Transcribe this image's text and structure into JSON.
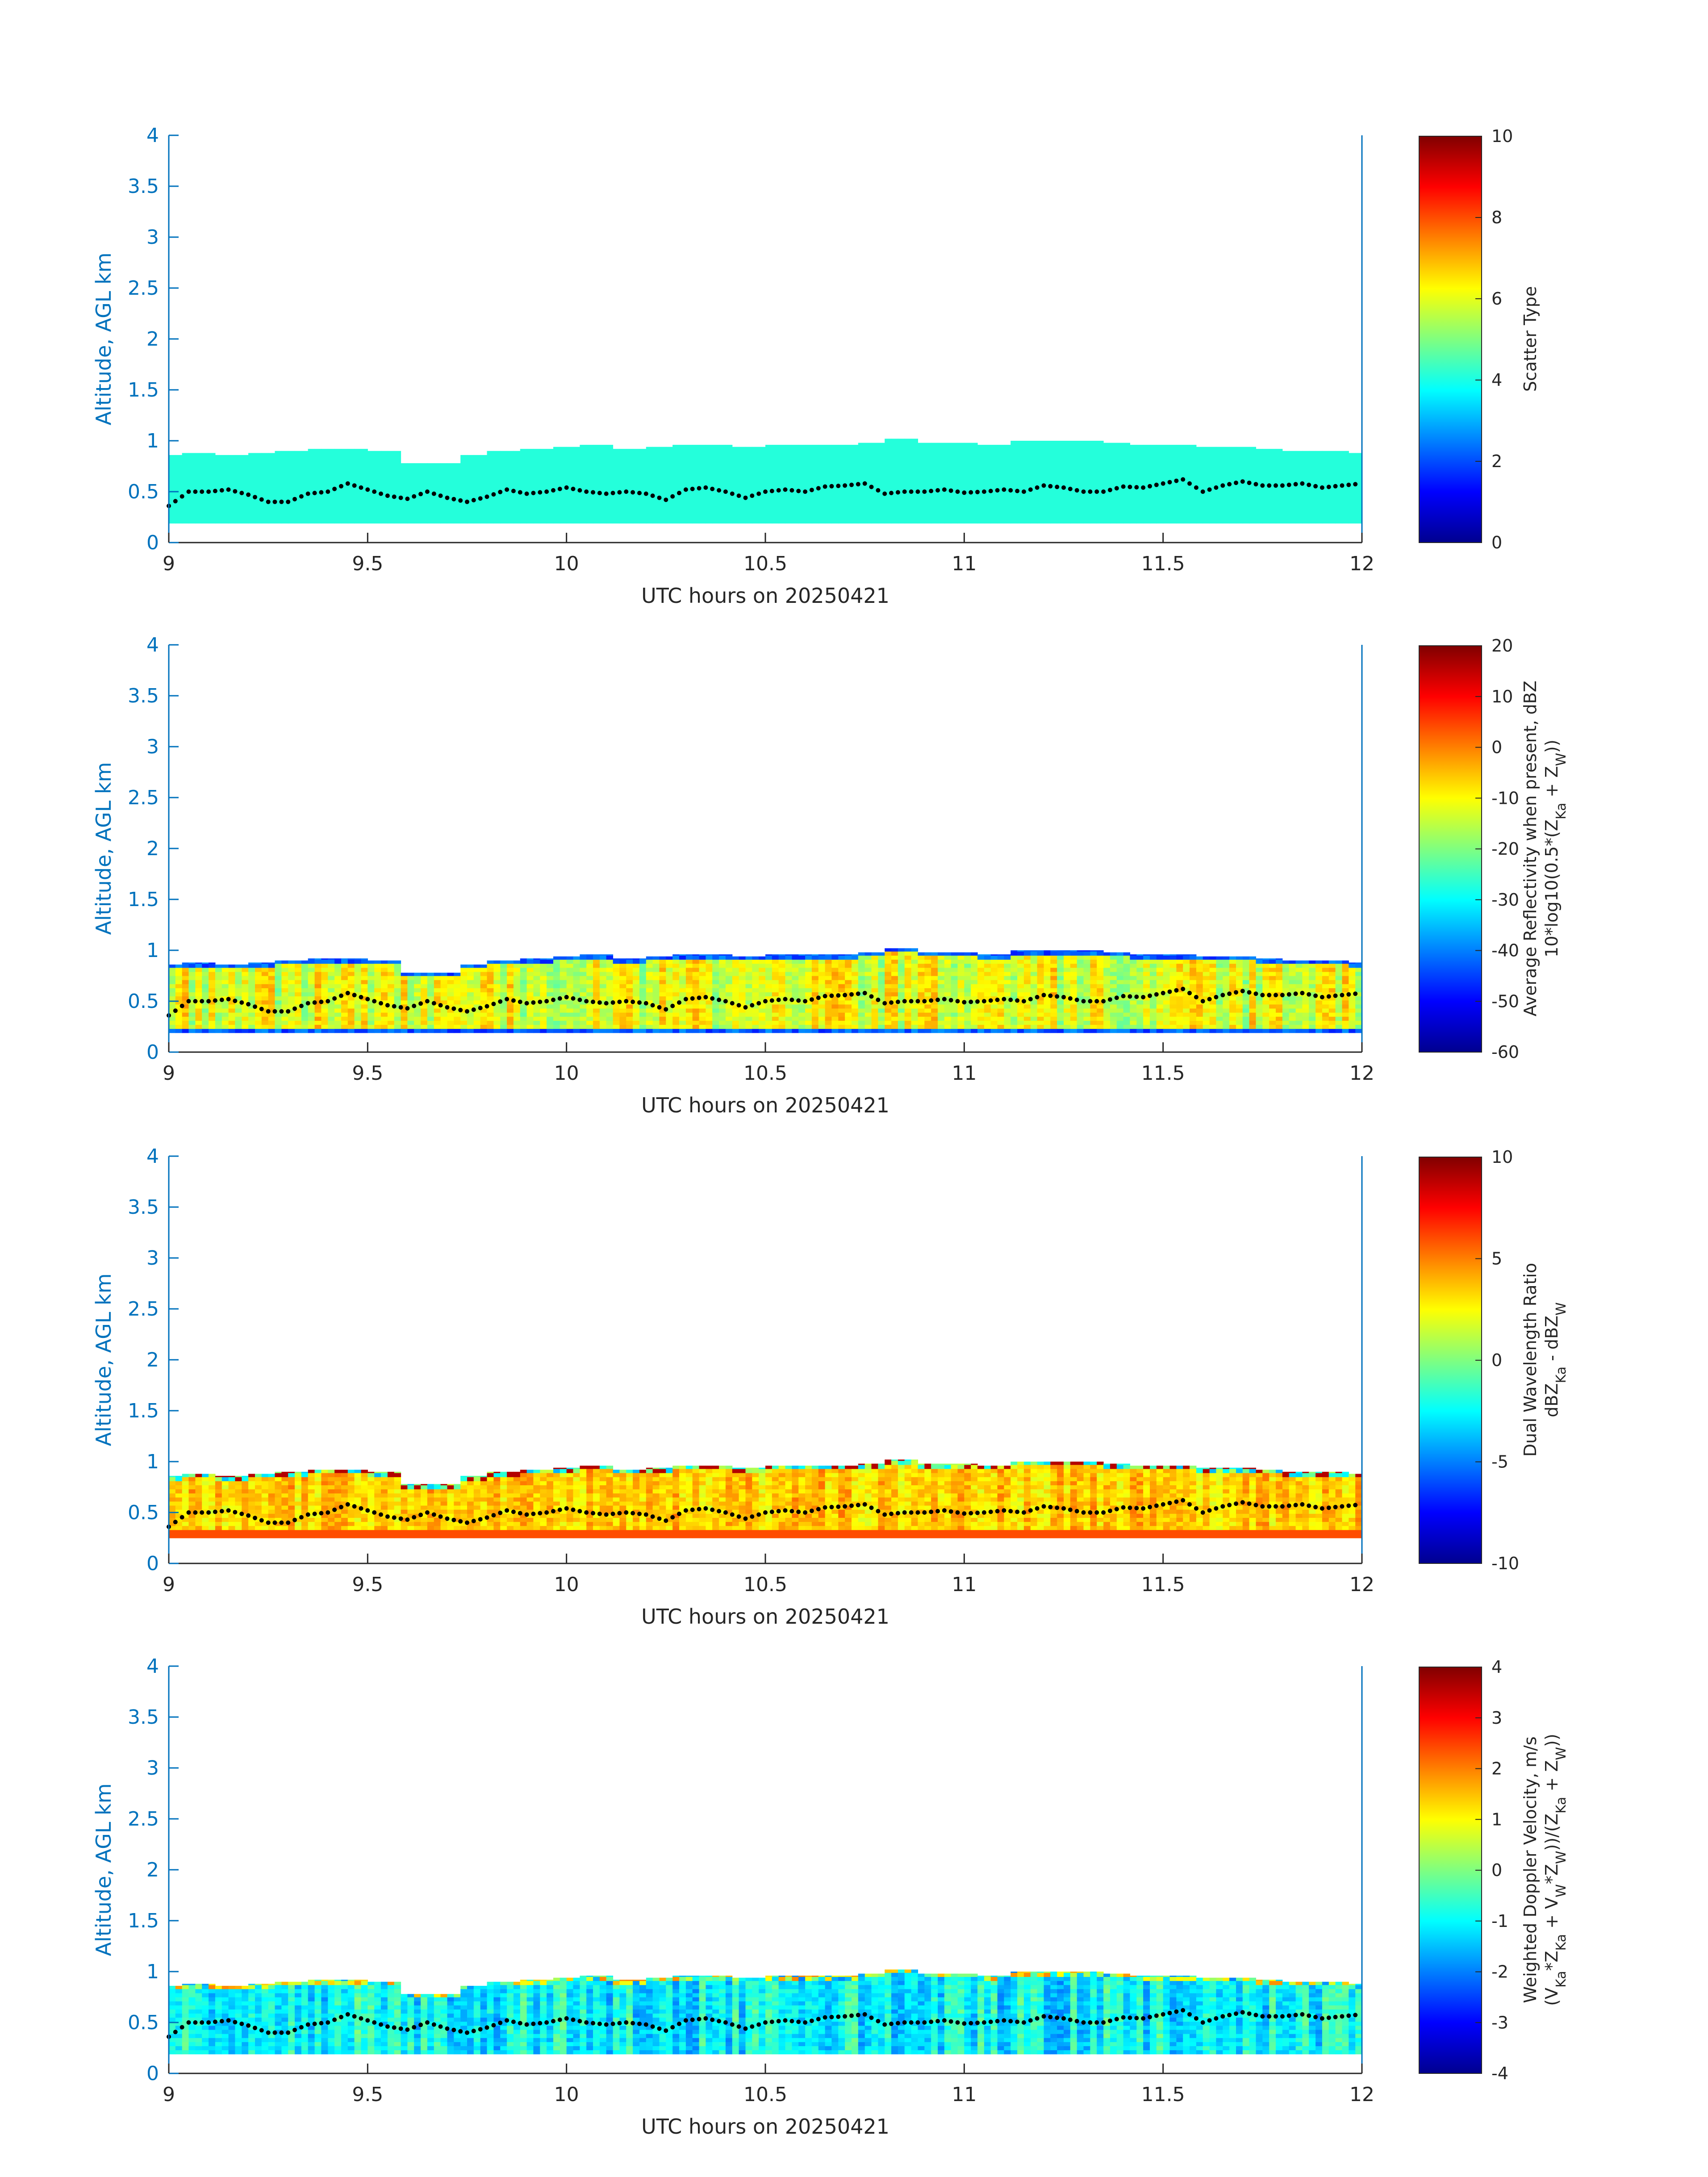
{
  "chart_data": [
    {
      "type": "heatmap",
      "xlabel": "UTC hours on 20250421",
      "ylabel": "Altitude, AGL km",
      "xlim": [
        9,
        12
      ],
      "ylim": [
        0,
        4
      ],
      "xticks": [
        "9",
        "9.5",
        "10",
        "10.5",
        "11",
        "11.5",
        "12"
      ],
      "yticks": [
        "0",
        "0.5",
        "1",
        "1.5",
        "2",
        "2.5",
        "3",
        "3.5",
        "4"
      ],
      "colorbar": {
        "label_lines": [
          "Scatter Type"
        ],
        "clim": [
          0,
          10
        ],
        "ticks": [
          "0",
          "2",
          "4",
          "6",
          "8",
          "10"
        ],
        "colormap": "jet"
      },
      "field": {
        "kind": "scatter",
        "bottom_km": 0.19,
        "tops": [
          0.86,
          0.88,
          0.86,
          0.88,
          0.9,
          0.92,
          0.92,
          0.9,
          0.78,
          0.78,
          0.86,
          0.9,
          0.92,
          0.94,
          0.96,
          0.92,
          0.94,
          0.96,
          0.96,
          0.94,
          0.96,
          0.96,
          0.96,
          0.98,
          1.02,
          0.98,
          0.98,
          0.96,
          1.0,
          1.0,
          1.0,
          0.98,
          0.96,
          0.96,
          0.94,
          0.94,
          0.92,
          0.9,
          0.9,
          0.88
        ],
        "value": 4.1
      }
    },
    {
      "type": "heatmap",
      "xlabel": "UTC hours on 20250421",
      "ylabel": "Altitude, AGL km",
      "xlim": [
        9,
        12
      ],
      "ylim": [
        0,
        4
      ],
      "xticks": [
        "9",
        "9.5",
        "10",
        "10.5",
        "11",
        "11.5",
        "12"
      ],
      "yticks": [
        "0",
        "0.5",
        "1",
        "1.5",
        "2",
        "2.5",
        "3",
        "3.5",
        "4"
      ],
      "colorbar": {
        "label_lines": [
          "Average Reflectivity when present, dBZ",
          "10*log10(0.5*(Z",
          "Ka",
          " + Z",
          "W",
          "))"
        ],
        "clim": [
          -60,
          20
        ],
        "ticks": [
          "-60",
          "-50",
          "-40",
          "-30",
          "-20",
          "-10",
          "0",
          "10",
          "20"
        ],
        "colormap": "jet"
      },
      "field": {
        "kind": "reflectivity",
        "bottom_km": 0.19,
        "typical_core": -12,
        "edge_value": -48
      }
    },
    {
      "type": "heatmap",
      "xlabel": "UTC hours on 20250421",
      "ylabel": "Altitude, AGL km",
      "xlim": [
        9,
        12
      ],
      "ylim": [
        0,
        4
      ],
      "xticks": [
        "9",
        "9.5",
        "10",
        "10.5",
        "11",
        "11.5",
        "12"
      ],
      "yticks": [
        "0",
        "0.5",
        "1",
        "1.5",
        "2",
        "2.5",
        "3",
        "3.5",
        "4"
      ],
      "colorbar": {
        "label_lines": [
          "Dual Wavelength Ratio",
          "dBZ",
          "Ka",
          " - dBZ",
          "W"
        ],
        "clim": [
          -10,
          10
        ],
        "ticks": [
          "-10",
          "-5",
          "0",
          "5",
          "10"
        ],
        "colormap": "jet"
      },
      "field": {
        "kind": "dwr",
        "bottom_km": 0.25,
        "typical_core": 3.5
      }
    },
    {
      "type": "heatmap",
      "xlabel": "UTC hours on 20250421",
      "ylabel": "Altitude, AGL km",
      "xlim": [
        9,
        12
      ],
      "ylim": [
        0,
        4
      ],
      "xticks": [
        "9",
        "9.5",
        "10",
        "10.5",
        "11",
        "11.5",
        "12"
      ],
      "yticks": [
        "0",
        "0.5",
        "1",
        "1.5",
        "2",
        "2.5",
        "3",
        "3.5",
        "4"
      ],
      "colorbar": {
        "label_lines": [
          "Weighted Doppler Velocity, m/s",
          "(V",
          "Ka",
          "*Z",
          "Ka",
          " + V",
          "W",
          "*Z",
          "W",
          "))/(Z",
          "Ka",
          " + Z",
          "W",
          "))"
        ],
        "clim": [
          -4,
          4
        ],
        "ticks": [
          "-4",
          "-3",
          "-2",
          "-1",
          "0",
          "1",
          "2",
          "3",
          "4"
        ],
        "colormap": "jet"
      },
      "field": {
        "kind": "velocity",
        "bottom_km": 0.19,
        "typical_core": -1.0
      }
    }
  ],
  "overlay_points": {
    "description_of_series": "black dots",
    "x": [
      9.0,
      9.05,
      9.1,
      9.15,
      9.2,
      9.25,
      9.3,
      9.35,
      9.4,
      9.45,
      9.5,
      9.55,
      9.6,
      9.65,
      9.7,
      9.75,
      9.8,
      9.85,
      9.9,
      9.95,
      10.0,
      10.05,
      10.1,
      10.15,
      10.2,
      10.25,
      10.3,
      10.35,
      10.4,
      10.45,
      10.5,
      10.55,
      10.6,
      10.65,
      10.7,
      10.75,
      10.8,
      10.85,
      10.9,
      10.95,
      11.0,
      11.05,
      11.1,
      11.15,
      11.2,
      11.25,
      11.3,
      11.35,
      11.4,
      11.45,
      11.5,
      11.55,
      11.6,
      11.65,
      11.7,
      11.75,
      11.8,
      11.85,
      11.9,
      11.95,
      12.0
    ],
    "y": [
      0.36,
      0.5,
      0.5,
      0.52,
      0.47,
      0.4,
      0.4,
      0.48,
      0.5,
      0.58,
      0.52,
      0.46,
      0.43,
      0.5,
      0.44,
      0.4,
      0.45,
      0.52,
      0.48,
      0.5,
      0.54,
      0.5,
      0.48,
      0.5,
      0.48,
      0.42,
      0.52,
      0.54,
      0.5,
      0.44,
      0.5,
      0.52,
      0.5,
      0.55,
      0.56,
      0.58,
      0.48,
      0.5,
      0.5,
      0.52,
      0.49,
      0.5,
      0.52,
      0.5,
      0.56,
      0.54,
      0.5,
      0.5,
      0.55,
      0.54,
      0.58,
      0.62,
      0.5,
      0.56,
      0.6,
      0.56,
      0.56,
      0.58,
      0.54,
      0.56,
      0.58
    ]
  }
}
